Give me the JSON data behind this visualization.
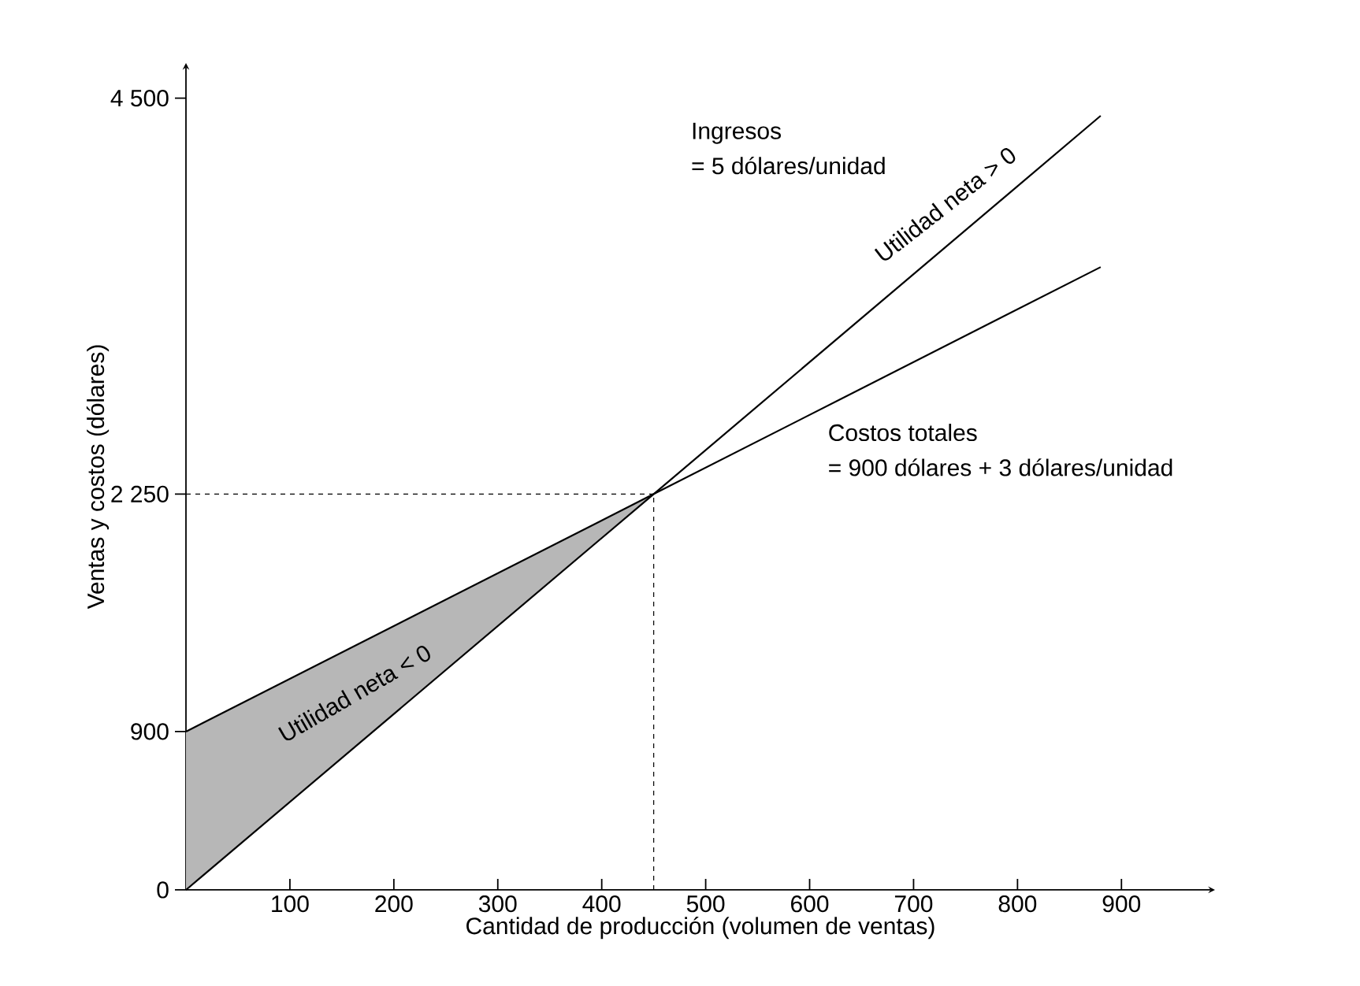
{
  "chart_data": {
    "type": "line",
    "xlabel": "Cantidad de producción (volumen de ventas)",
    "ylabel": "Ventas y costos (dólares)",
    "xlim": [
      0,
      990
    ],
    "ylim": [
      0,
      4700
    ],
    "xticks": [
      100,
      200,
      300,
      400,
      500,
      600,
      700,
      800,
      900
    ],
    "yticks": [
      {
        "value": 0,
        "label": "0"
      },
      {
        "value": 900,
        "label": "900"
      },
      {
        "value": 2250,
        "label": "2 250"
      },
      {
        "value": 4500,
        "label": "4 500"
      }
    ],
    "series": [
      {
        "color": "#000000",
        "x": [
          0,
          450,
          880
        ],
        "values": [
          0,
          2250,
          4400
        ]
      },
      {
        "color": "#000000",
        "x": [
          0,
          450,
          880
        ],
        "values": [
          900,
          2250,
          3540
        ],
        "lower": [
          0,
          2250,
          null
        ],
        "upper": [
          900,
          2250,
          null
        ]
      }
    ],
    "ref_lines": [
      {
        "axis": "x",
        "value": 450,
        "line_style": "dashed",
        "color": "#000000"
      },
      {
        "axis": "y",
        "value": 2250,
        "line_style": "dashed",
        "color": "#000000"
      }
    ],
    "annotations": [
      "Ingresos",
      "= 5 dólares/unidad",
      "Costos totales",
      "= 900 dólares + 3 dólares/unidad",
      "Utilidad neta > 0",
      "Utilidad neta < 0"
    ],
    "grid": false,
    "marker": "none",
    "line_style": "solid"
  }
}
